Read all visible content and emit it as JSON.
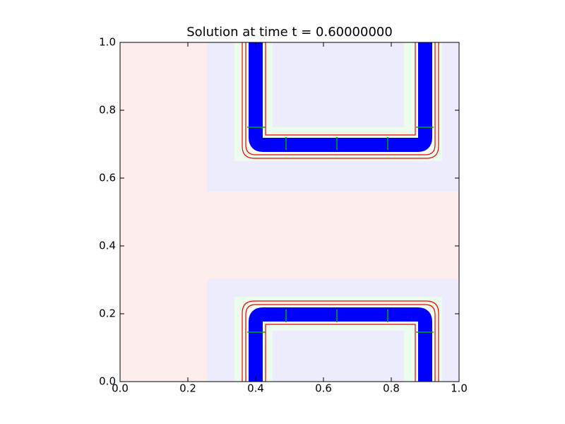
{
  "chart_data": {
    "type": "field",
    "title": "Solution at time t =      0.60000000",
    "xlim": [
      0,
      1
    ],
    "ylim": [
      0,
      1
    ],
    "xticks": [
      {
        "value": 0,
        "label": "0.0"
      },
      {
        "value": 0.2,
        "label": "0.2"
      },
      {
        "value": 0.4,
        "label": "0.4"
      },
      {
        "value": 0.6,
        "label": "0.6"
      },
      {
        "value": 0.8,
        "label": "0.8"
      },
      {
        "value": 1,
        "label": "1.0"
      }
    ],
    "yticks": [
      {
        "value": 0,
        "label": "0.0"
      },
      {
        "value": 0.2,
        "label": "0.2"
      },
      {
        "value": 0.4,
        "label": "0.4"
      },
      {
        "value": 0.6,
        "label": "0.6"
      },
      {
        "value": 0.8,
        "label": "0.8"
      },
      {
        "value": 1,
        "label": "1.0"
      }
    ]
  }
}
